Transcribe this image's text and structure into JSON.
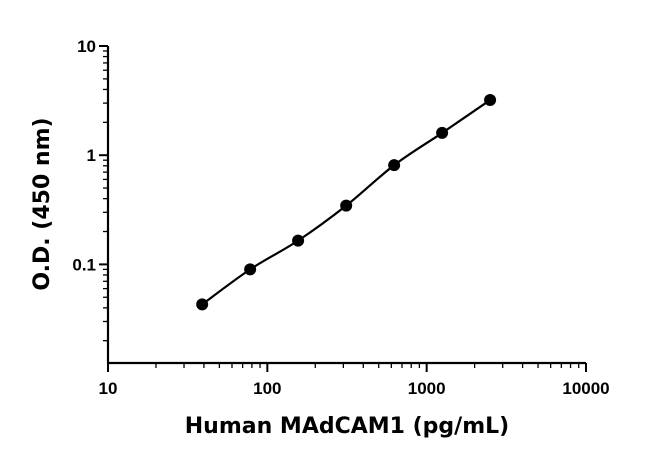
{
  "chart_data": {
    "type": "line",
    "xlabel": "Human MAdCAM1 (pg/mL)",
    "ylabel": "O.D. (450 nm)",
    "xscale": "log",
    "yscale": "log",
    "xlim": [
      10,
      10000
    ],
    "ylim": [
      0.0125,
      10
    ],
    "x_ticks": [
      "10",
      "100",
      "1000",
      "10000"
    ],
    "y_ticks": [
      "0.1",
      "1",
      "10"
    ],
    "grid": false,
    "legend": "none",
    "markers": "filled-circle",
    "colors": {
      "series": "#000000"
    },
    "series": [
      {
        "x": [
          39,
          78,
          156,
          312.5,
          625,
          1250,
          2500
        ],
        "y": [
          0.043,
          0.09,
          0.165,
          0.345,
          0.81,
          1.6,
          3.2
        ]
      }
    ]
  }
}
